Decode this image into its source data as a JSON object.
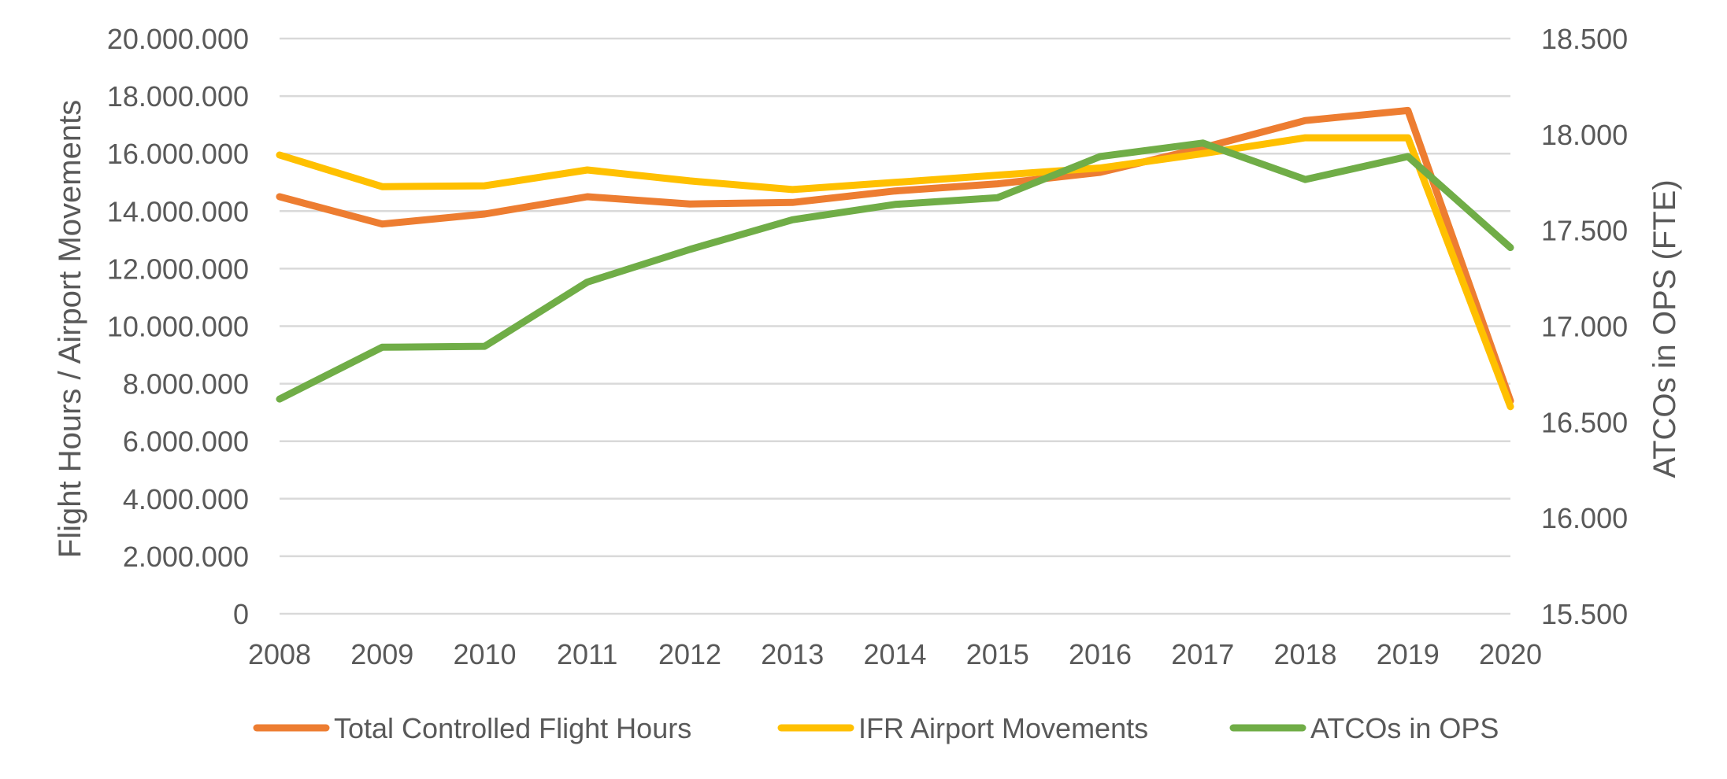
{
  "chart_data": {
    "type": "line",
    "x": [
      "2008",
      "2009",
      "2010",
      "2011",
      "2012",
      "2013",
      "2014",
      "2015",
      "2016",
      "2017",
      "2018",
      "2019",
      "2020"
    ],
    "ylabel": "Flight Hours / Airport Movements",
    "y2label": "ATCOs in OPS (FTE)",
    "ylim": [
      0,
      20000000
    ],
    "y2lim": [
      15500,
      18500
    ],
    "yticks": [
      "0",
      "2.000.000",
      "4.000.000",
      "6.000.000",
      "8.000.000",
      "10.000.000",
      "12.000.000",
      "14.000.000",
      "16.000.000",
      "18.000.000",
      "20.000.000"
    ],
    "y2ticks": [
      "15.500",
      "16.000",
      "16.500",
      "17.000",
      "17.500",
      "18.000",
      "18.500"
    ],
    "grid": true,
    "legend_position": "bottom",
    "series": [
      {
        "name": "Total Controlled Flight Hours",
        "axis": "left",
        "color": "#ED7D31",
        "values": [
          14500000,
          13550000,
          13900000,
          14500000,
          14250000,
          14300000,
          14700000,
          14950000,
          15350000,
          16200000,
          17150000,
          17500000,
          7400000
        ]
      },
      {
        "name": "IFR Airport Movements",
        "axis": "left",
        "color": "#FFC000",
        "values": [
          15950000,
          14850000,
          14880000,
          15430000,
          15050000,
          14750000,
          15000000,
          15250000,
          15500000,
          16000000,
          16550000,
          16550000,
          7200000
        ]
      },
      {
        "name": "ATCOs in OPS",
        "axis": "right",
        "color": "#70AD47",
        "values": [
          16620,
          16890,
          16895,
          17230,
          17400,
          17555,
          17635,
          17670,
          17885,
          17955,
          17765,
          17885,
          17410
        ]
      }
    ]
  }
}
